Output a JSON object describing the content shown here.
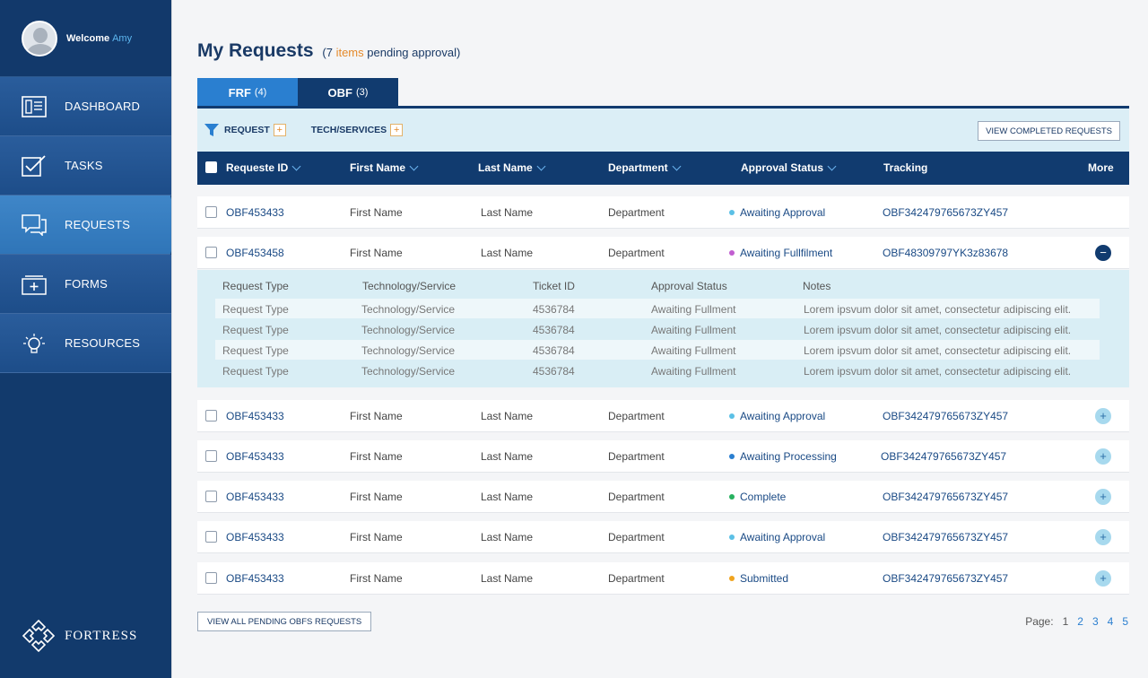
{
  "user": {
    "welcome": "Welcome",
    "name": "Amy"
  },
  "nav": [
    {
      "label": "DASHBOARD",
      "icon": "dashboard-icon"
    },
    {
      "label": "TASKS",
      "icon": "checkbox-icon"
    },
    {
      "label": "REQUESTS",
      "icon": "chat-bubbles-icon",
      "active": true
    },
    {
      "label": "FORMS",
      "icon": "add-folder-icon"
    },
    {
      "label": "RESOURCES",
      "icon": "lightbulb-icon"
    }
  ],
  "brand": {
    "name": "FORTRESS"
  },
  "page": {
    "title": "My Requests",
    "subtitle_open": "(7",
    "subtitle_count": "items",
    "subtitle_rest": "pending approval)"
  },
  "tabs": [
    {
      "label": "FRF",
      "count": "(4)"
    },
    {
      "label": "OBF",
      "count": "(3)"
    }
  ],
  "filters": {
    "request": "REQUEST",
    "tech": "TECH/SERVICES",
    "plus": "+",
    "view_completed": "VIEW COMPLETED REQUESTS"
  },
  "columns": {
    "request_id": "Requeste ID",
    "first_name": "First Name",
    "last_name": "Last Name",
    "department": "Department",
    "approval_status": "Approval Status",
    "tracking": "Tracking",
    "more": "More"
  },
  "rows": [
    {
      "id": "OBF453433",
      "first": "First Name",
      "last": "Last Name",
      "dept": "Department",
      "status": "Awaiting Approval",
      "status_color": "#5bc0e6",
      "tracking": "OBF342479765673ZY457",
      "toggle": ""
    },
    {
      "id": "OBF453458",
      "first": "First Name",
      "last": "Last Name",
      "dept": "Department",
      "status": "Awaiting Fullfilment",
      "status_color": "#c15ed0",
      "tracking": "OBF48309797YK3z83678",
      "toggle": "−"
    },
    {
      "id": "OBF453433",
      "first": "First Name",
      "last": "Last Name",
      "dept": "Department",
      "status": "Awaiting Approval",
      "status_color": "#5bc0e6",
      "tracking": "OBF342479765673ZY457",
      "toggle": "+"
    },
    {
      "id": "OBF453433",
      "first": "First Name",
      "last": "Last Name",
      "dept": "Department",
      "status": "Awaiting Processing",
      "status_color": "#2a7fd0",
      "tracking": "OBF342479765673ZY457",
      "toggle": "+"
    },
    {
      "id": "OBF453433",
      "first": "First Name",
      "last": "Last Name",
      "dept": "Department",
      "status": "Complete",
      "status_color": "#27b15f",
      "tracking": "OBF342479765673ZY457",
      "toggle": "+"
    },
    {
      "id": "OBF453433",
      "first": "First Name",
      "last": "Last Name",
      "dept": "Department",
      "status": "Awaiting Approval",
      "status_color": "#5bc0e6",
      "tracking": "OBF342479765673ZY457",
      "toggle": "+"
    },
    {
      "id": "OBF453433",
      "first": "First Name",
      "last": "Last Name",
      "dept": "Department",
      "status": "Submitted",
      "status_color": "#f0a41e",
      "tracking": "OBF342479765673ZY457",
      "toggle": "+"
    }
  ],
  "detail": {
    "headers": [
      "Request Type",
      "Technology/Service",
      "Ticket ID",
      "Approval Status",
      "Notes"
    ],
    "rows": [
      [
        "Request Type",
        "Technology/Service",
        "4536784",
        "Awaiting Fullment",
        "Lorem ipsvum dolor sit amet, consectetur adipiscing elit."
      ],
      [
        "Request Type",
        "Technology/Service",
        "4536784",
        "Awaiting Fullment",
        "Lorem ipsvum dolor sit amet, consectetur adipiscing elit."
      ],
      [
        "Request Type",
        "Technology/Service",
        "4536784",
        "Awaiting Fullment",
        "Lorem ipsvum dolor sit amet, consectetur adipiscing elit."
      ],
      [
        "Request Type",
        "Technology/Service",
        "4536784",
        "Awaiting Fullment",
        "Lorem ipsvum dolor sit amet, consectetur adipiscing elit."
      ]
    ]
  },
  "footer": {
    "view_all": "VIEW ALL PENDING OBFS REQUESTS",
    "page_label": "Page:",
    "pages": [
      "1",
      "2",
      "3",
      "4",
      "5"
    ],
    "current_page": "1"
  }
}
